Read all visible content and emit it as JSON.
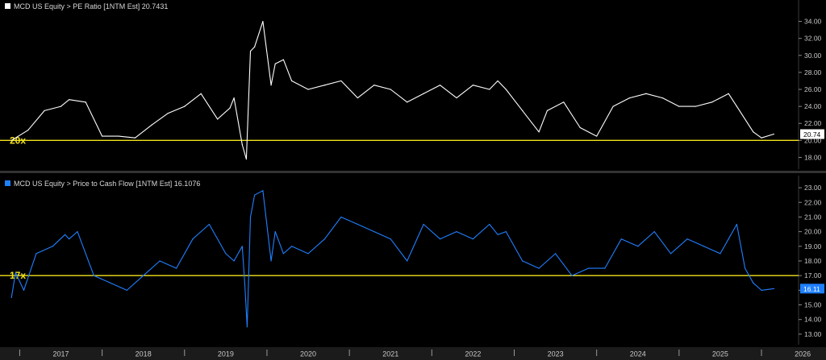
{
  "chart_data": [
    {
      "type": "line",
      "legend": "MCD US Equity > PE Ratio [1NTM Est]  20.7431",
      "color": "#ffffff",
      "ylim": [
        17,
        35
      ],
      "yticks": [
        18,
        20,
        22,
        24,
        26,
        28,
        30,
        32,
        34
      ],
      "ytick_labels": [
        "18.00",
        "20.00",
        "22.00",
        "24.00",
        "26.00",
        "28.00",
        "30.00",
        "32.00",
        "34.00"
      ],
      "reference_line": {
        "value": 20,
        "label": "20x",
        "color": "#f2e21b"
      },
      "last_value_label": "20.74",
      "last_value_style": {
        "fill": "#ffffff",
        "text": "#000000"
      },
      "x": [
        2016.9,
        2017.1,
        2017.3,
        2017.5,
        2017.6,
        2017.8,
        2018.0,
        2018.2,
        2018.4,
        2018.6,
        2018.8,
        2019.0,
        2019.2,
        2019.4,
        2019.55,
        2019.6,
        2019.7,
        2019.75,
        2019.8,
        2019.85,
        2019.95,
        2020.05,
        2020.1,
        2020.2,
        2020.3,
        2020.5,
        2020.7,
        2020.9,
        2021.1,
        2021.3,
        2021.5,
        2021.7,
        2021.9,
        2022.1,
        2022.3,
        2022.5,
        2022.7,
        2022.8,
        2022.9,
        2023.1,
        2023.3,
        2023.4,
        2023.6,
        2023.8,
        2024.0,
        2024.2,
        2024.4,
        2024.6,
        2024.8,
        2025.0,
        2025.2,
        2025.4,
        2025.6,
        2025.7,
        2025.9,
        2026.0,
        2026.15
      ],
      "y": [
        20.0,
        21.2,
        23.5,
        24.0,
        24.8,
        24.5,
        20.5,
        20.5,
        20.3,
        21.8,
        23.2,
        24.0,
        25.5,
        22.5,
        23.8,
        25.0,
        19.5,
        17.8,
        30.5,
        31.0,
        34.0,
        26.5,
        29.0,
        29.5,
        27.0,
        26.0,
        26.5,
        27.0,
        25.0,
        26.5,
        26.0,
        24.5,
        25.5,
        26.5,
        25.0,
        26.5,
        26.0,
        27.0,
        26.0,
        23.5,
        21.0,
        23.5,
        24.5,
        21.5,
        20.5,
        24.0,
        25.0,
        25.5,
        25.0,
        24.0,
        24.0,
        24.5,
        25.5,
        24.0,
        21.0,
        20.3,
        20.74
      ]
    },
    {
      "type": "line",
      "legend": "MCD US Equity > Price to Cash Flow [1NTM Est]  16.1076",
      "color": "#1f80ff",
      "ylim": [
        12.5,
        23.5
      ],
      "yticks": [
        13,
        14,
        15,
        16,
        17,
        18,
        19,
        20,
        21,
        22,
        23
      ],
      "ytick_labels": [
        "13.00",
        "14.00",
        "15.00",
        "16.00",
        "17.00",
        "18.00",
        "19.00",
        "20.00",
        "21.00",
        "22.00",
        "23.00"
      ],
      "reference_line": {
        "value": 17,
        "label": "17x",
        "color": "#f2e21b"
      },
      "last_value_label": "16.11",
      "last_value_style": {
        "fill": "#1f80ff",
        "text": "#ffffff"
      },
      "x": [
        2016.9,
        2016.95,
        2017.05,
        2017.2,
        2017.4,
        2017.55,
        2017.6,
        2017.7,
        2017.9,
        2018.1,
        2018.3,
        2018.5,
        2018.7,
        2018.9,
        2019.1,
        2019.3,
        2019.5,
        2019.6,
        2019.7,
        2019.73,
        2019.76,
        2019.8,
        2019.85,
        2019.95,
        2020.05,
        2020.1,
        2020.2,
        2020.3,
        2020.5,
        2020.7,
        2020.9,
        2021.1,
        2021.3,
        2021.5,
        2021.7,
        2021.9,
        2022.1,
        2022.3,
        2022.5,
        2022.7,
        2022.8,
        2022.9,
        2023.1,
        2023.3,
        2023.5,
        2023.7,
        2023.9,
        2024.1,
        2024.3,
        2024.5,
        2024.7,
        2024.9,
        2025.1,
        2025.3,
        2025.5,
        2025.6,
        2025.7,
        2025.8,
        2025.9,
        2026.0,
        2026.15
      ],
      "y": [
        15.5,
        17.2,
        16.0,
        18.5,
        19.0,
        19.8,
        19.5,
        20.0,
        17.0,
        16.5,
        16.0,
        17.0,
        18.0,
        17.5,
        19.5,
        20.5,
        18.5,
        18.0,
        19.0,
        16.5,
        13.5,
        21.0,
        22.5,
        22.8,
        18.0,
        20.0,
        18.5,
        19.0,
        18.5,
        19.5,
        21.0,
        20.5,
        20.0,
        19.5,
        18.0,
        20.5,
        19.5,
        20.0,
        19.5,
        20.5,
        19.8,
        20.0,
        18.0,
        17.5,
        18.5,
        17.0,
        17.5,
        17.5,
        19.5,
        19.0,
        20.0,
        18.5,
        19.5,
        19.0,
        18.5,
        19.5,
        20.5,
        17.5,
        16.5,
        16.0,
        16.11
      ]
    }
  ],
  "x_axis": {
    "labels": [
      "2017",
      "2018",
      "2019",
      "2020",
      "2021",
      "2022",
      "2023",
      "2024",
      "2025",
      "2026"
    ],
    "range": [
      2016.8,
      2026.45
    ]
  }
}
